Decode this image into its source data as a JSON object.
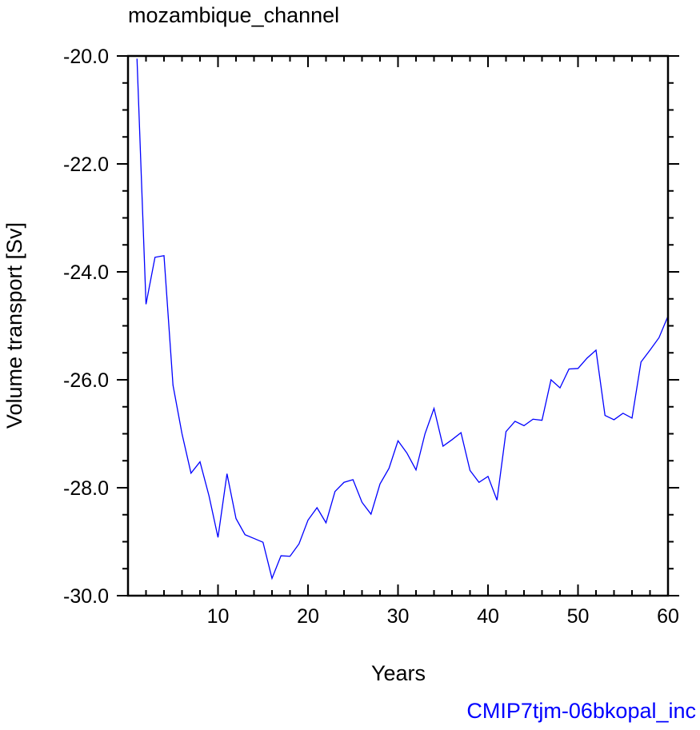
{
  "chart_data": {
    "type": "line",
    "title": "mozambique_channel",
    "xlabel": "Years",
    "ylabel": "Volume transport [Sv]",
    "xlim": [
      0,
      60
    ],
    "ylim": [
      -30,
      -20
    ],
    "x_ticks": [
      10,
      20,
      30,
      40,
      50,
      60
    ],
    "x_tick_labels": [
      "10",
      "20",
      "30",
      "40",
      "50",
      "60"
    ],
    "y_ticks": [
      -30,
      -28,
      -26,
      -24,
      -22,
      -20
    ],
    "y_tick_labels": [
      "-30.0",
      "-28.0",
      "-26.0",
      "-24.0",
      "-22.0",
      "-20.0"
    ],
    "grid": false,
    "series": [
      {
        "color": "#0000ff",
        "x": [
          1,
          2,
          3,
          4,
          5,
          6,
          7,
          8,
          9,
          10,
          11,
          12,
          13,
          14,
          15,
          16,
          17,
          18,
          19,
          20,
          21,
          22,
          23,
          24,
          25,
          26,
          27,
          28,
          29,
          30,
          31,
          32,
          33,
          34,
          35,
          36,
          37,
          38,
          39,
          40,
          41,
          42,
          43,
          44,
          45,
          46,
          47,
          48,
          49,
          50,
          51,
          52,
          53,
          54,
          55,
          56,
          57,
          58,
          59,
          60
        ],
        "values": [
          -20.05,
          -24.6,
          -23.73,
          -23.7,
          -26.1,
          -27.0,
          -27.73,
          -27.52,
          -28.15,
          -28.92,
          -27.74,
          -28.57,
          -28.87,
          -28.94,
          -29.01,
          -29.68,
          -29.26,
          -29.27,
          -29.04,
          -28.6,
          -28.37,
          -28.65,
          -28.07,
          -27.9,
          -27.85,
          -28.27,
          -28.49,
          -27.93,
          -27.64,
          -27.13,
          -27.36,
          -27.67,
          -27.0,
          -26.53,
          -27.23,
          -27.11,
          -26.98,
          -27.68,
          -27.9,
          -27.79,
          -28.23,
          -26.96,
          -26.77,
          -26.85,
          -26.73,
          -26.75,
          -26.0,
          -26.15,
          -25.8,
          -25.79,
          -25.6,
          -25.45,
          -26.66,
          -26.74,
          -26.62,
          -26.71,
          -25.67,
          -25.45,
          -25.22,
          -24.82
        ]
      }
    ],
    "footer": "CMIP7tjm-06bkopal_inc",
    "footer_color": "#0000ff"
  }
}
